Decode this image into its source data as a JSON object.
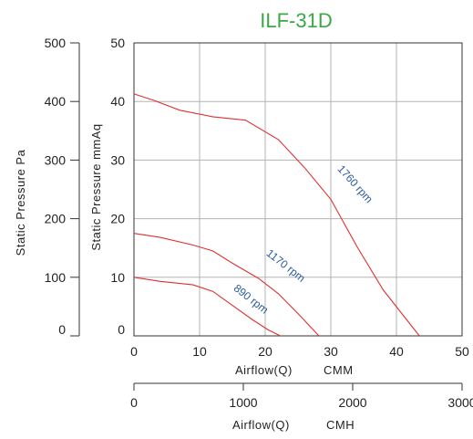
{
  "chart_data": {
    "type": "line",
    "title": "ILF-31D",
    "title_color": "#3aa845",
    "curve_color": "#e03030",
    "rpm_label_color": "#2d5a9e",
    "xlabel": "Airflow(Q)",
    "xunit": "CMM",
    "xlim": [
      0,
      50
    ],
    "xticks": [
      0,
      10,
      20,
      30,
      40,
      50
    ],
    "x2label": "Airflow(Q)",
    "x2unit": "CMH",
    "x2lim": [
      0,
      3000
    ],
    "x2ticks": [
      0,
      1000,
      2000,
      3000
    ],
    "ylabel": "Static  Pressure  mmAq",
    "ylim": [
      0,
      50
    ],
    "yticks": [
      0,
      10,
      20,
      30,
      40,
      50
    ],
    "y2label": "Static  Pressure  Pa",
    "y2lim": [
      0,
      500
    ],
    "y2ticks": [
      0,
      100,
      200,
      300,
      400,
      500
    ],
    "grid": true,
    "series": [
      {
        "name": "1760 rpm",
        "x": [
          0,
          3,
          7,
          12,
          17,
          22,
          26,
          30,
          34,
          38,
          43.5
        ],
        "y": [
          41.3,
          40.2,
          38.5,
          37.4,
          36.8,
          33.5,
          28.7,
          23.3,
          15.2,
          7.8,
          0
        ],
        "label_at": [
          33.3,
          25.5
        ],
        "label_angle": 48
      },
      {
        "name": "1170 rpm",
        "x": [
          0,
          4,
          9,
          12,
          15,
          19,
          22,
          25,
          28.2
        ],
        "y": [
          17.5,
          16.8,
          15.5,
          14.5,
          12.4,
          9.8,
          7.2,
          3.8,
          0
        ],
        "label_at": [
          22.8,
          11.5
        ],
        "label_angle": 38
      },
      {
        "name": "890 rpm",
        "x": [
          0,
          4,
          9,
          12,
          15,
          18,
          20.5,
          22.3
        ],
        "y": [
          10.0,
          9.3,
          8.7,
          7.6,
          5.2,
          2.8,
          1.0,
          0
        ],
        "label_at": [
          17.5,
          5.8
        ],
        "label_angle": 38
      }
    ]
  }
}
